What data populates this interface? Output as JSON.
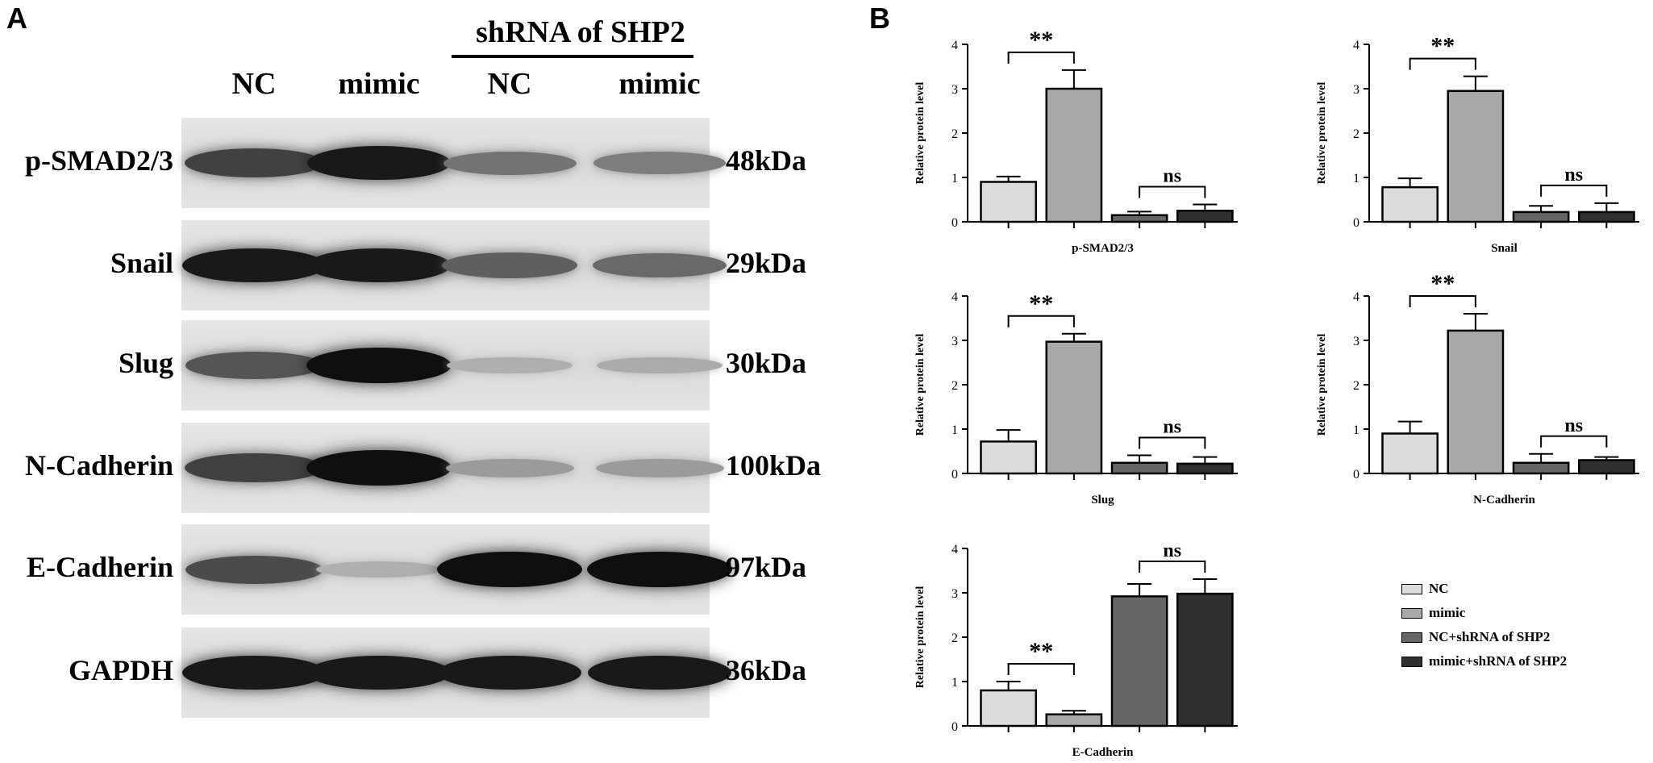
{
  "panel_a": {
    "letter": "A",
    "group_label": "shRNA of SHP2",
    "lanes": [
      "NC",
      "mimic",
      "NC",
      "mimic"
    ],
    "rows": [
      {
        "protein": "p-SMAD2/3",
        "kda": "48kDa",
        "intensity": [
          0.75,
          0.95,
          0.5,
          0.45
        ]
      },
      {
        "protein": "Snail",
        "kda": "29kDa",
        "intensity": [
          0.95,
          0.95,
          0.6,
          0.55
        ]
      },
      {
        "protein": "Slug",
        "kda": "30kDa",
        "intensity": [
          0.65,
          1.0,
          0.2,
          0.22
        ]
      },
      {
        "protein": "N-Cadherin",
        "kda": "100kDa",
        "intensity": [
          0.75,
          1.0,
          0.3,
          0.3
        ]
      },
      {
        "protein": "E-Cadherin",
        "kda": "97kDa",
        "intensity": [
          0.7,
          0.2,
          1.0,
          1.0
        ]
      },
      {
        "protein": "GAPDH",
        "kda": "36kDa",
        "intensity": [
          0.95,
          0.95,
          0.95,
          0.95
        ]
      }
    ]
  },
  "panel_b": {
    "letter": "B"
  },
  "legend": {
    "entries": [
      {
        "label": "NC",
        "color": "#dcdcdc"
      },
      {
        "label": "mimic",
        "color": "#a9a9a9"
      },
      {
        "label": "NC+shRNA of SHP2",
        "color": "#666666"
      },
      {
        "label": "mimic+shRNA of SHP2",
        "color": "#303030"
      }
    ]
  },
  "chart_data": [
    {
      "type": "bar",
      "xlabel": "p-SMAD2/3",
      "ylabel": "Relative protein level",
      "ylim": [
        0,
        4
      ],
      "yticks": [
        "0",
        "1",
        "2",
        "3",
        "4"
      ],
      "series_values": [
        0.9,
        3.0,
        0.15,
        0.25
      ],
      "errors": [
        0.12,
        0.42,
        0.08,
        0.14
      ],
      "significance": [
        {
          "between": [
            0,
            1
          ],
          "label": "**"
        },
        {
          "between": [
            2,
            3
          ],
          "label": "ns"
        }
      ]
    },
    {
      "type": "bar",
      "xlabel": "Snail",
      "ylabel": "Relative protein level",
      "ylim": [
        0,
        4
      ],
      "yticks": [
        "0",
        "1",
        "2",
        "3",
        "4"
      ],
      "series_values": [
        0.78,
        2.95,
        0.22,
        0.22
      ],
      "errors": [
        0.2,
        0.33,
        0.14,
        0.2
      ],
      "significance": [
        {
          "between": [
            0,
            1
          ],
          "label": "**"
        },
        {
          "between": [
            2,
            3
          ],
          "label": "ns"
        }
      ]
    },
    {
      "type": "bar",
      "xlabel": "Slug",
      "ylabel": "Relative protein level",
      "ylim": [
        0,
        4
      ],
      "yticks": [
        "0",
        "1",
        "2",
        "3",
        "4"
      ],
      "series_values": [
        0.72,
        2.97,
        0.24,
        0.22
      ],
      "errors": [
        0.26,
        0.18,
        0.17,
        0.15
      ],
      "significance": [
        {
          "between": [
            0,
            1
          ],
          "label": "**"
        },
        {
          "between": [
            2,
            3
          ],
          "label": "ns"
        }
      ]
    },
    {
      "type": "bar",
      "xlabel": "N-Cadherin",
      "ylabel": "Relative protein level",
      "ylim": [
        0,
        4
      ],
      "yticks": [
        "0",
        "1",
        "2",
        "3",
        "4"
      ],
      "series_values": [
        0.9,
        3.22,
        0.24,
        0.3
      ],
      "errors": [
        0.27,
        0.38,
        0.2,
        0.07
      ],
      "significance": [
        {
          "between": [
            0,
            1
          ],
          "label": "**"
        },
        {
          "between": [
            2,
            3
          ],
          "label": "ns"
        }
      ]
    },
    {
      "type": "bar",
      "xlabel": "E-Cadherin",
      "ylabel": "Relative protein level",
      "ylim": [
        0,
        4
      ],
      "yticks": [
        "0",
        "1",
        "2",
        "3",
        "4"
      ],
      "series_values": [
        0.8,
        0.26,
        2.92,
        2.98
      ],
      "errors": [
        0.2,
        0.08,
        0.28,
        0.33
      ],
      "significance": [
        {
          "between": [
            0,
            1
          ],
          "label": "**"
        },
        {
          "between": [
            2,
            3
          ],
          "label": "ns"
        }
      ]
    }
  ]
}
